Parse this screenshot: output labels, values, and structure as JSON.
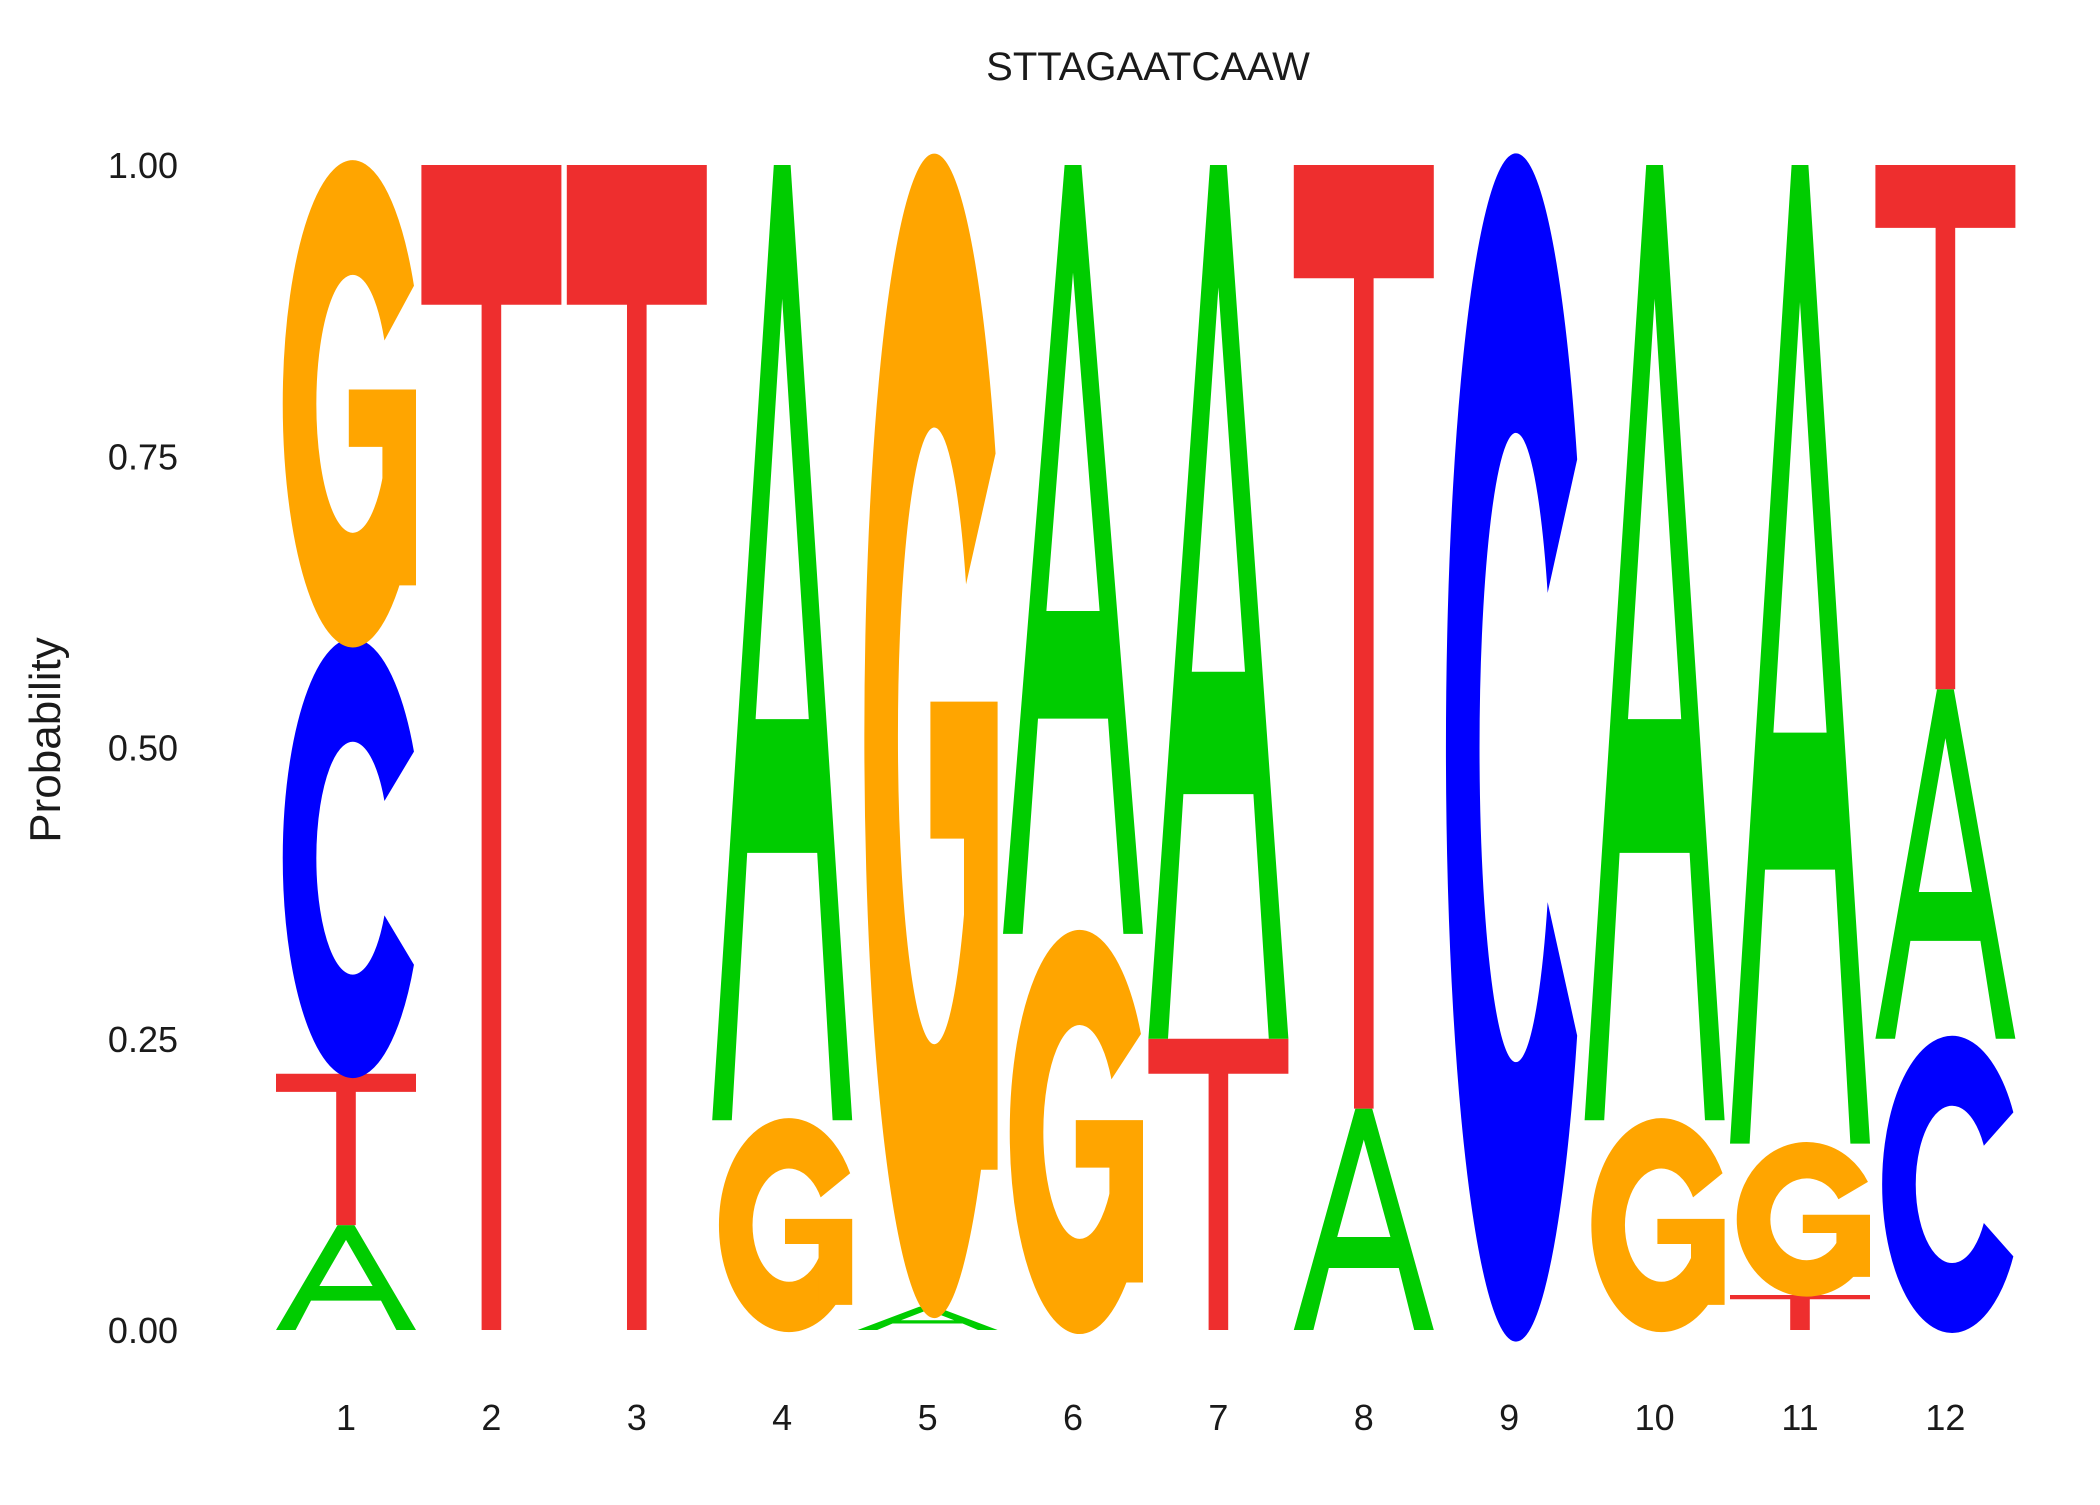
{
  "chart_data": {
    "type": "sequence-logo",
    "title": "STTAGAATCAAW",
    "ylabel": "Probability",
    "xlabel": "",
    "ylim": [
      0,
      1
    ],
    "yticks": [
      "0.00",
      "0.25",
      "0.50",
      "0.75",
      "1.00"
    ],
    "positions": [
      "1",
      "2",
      "3",
      "4",
      "5",
      "6",
      "7",
      "8",
      "9",
      "10",
      "11",
      "12"
    ],
    "colors": {
      "A": "#00cc00",
      "C": "#0000ff",
      "G": "#ffa500",
      "T": "#ee2e2e"
    },
    "columns": [
      [
        {
          "base": "A",
          "p": 0.09
        },
        {
          "base": "T",
          "p": 0.13
        },
        {
          "base": "C",
          "p": 0.37
        },
        {
          "base": "G",
          "p": 0.41
        }
      ],
      [
        {
          "base": "T",
          "p": 1.0
        }
      ],
      [
        {
          "base": "T",
          "p": 1.0
        }
      ],
      [
        {
          "base": "G",
          "p": 0.18
        },
        {
          "base": "A",
          "p": 0.82
        }
      ],
      [
        {
          "base": "A",
          "p": 0.02
        },
        {
          "base": "G",
          "p": 0.98
        }
      ],
      [
        {
          "base": "G",
          "p": 0.34
        },
        {
          "base": "A",
          "p": 0.66
        }
      ],
      [
        {
          "base": "T",
          "p": 0.25
        },
        {
          "base": "A",
          "p": 0.75
        }
      ],
      [
        {
          "base": "A",
          "p": 0.19
        },
        {
          "base": "T",
          "p": 0.81
        }
      ],
      [
        {
          "base": "C",
          "p": 1.0
        }
      ],
      [
        {
          "base": "G",
          "p": 0.18
        },
        {
          "base": "A",
          "p": 0.82
        }
      ],
      [
        {
          "base": "T",
          "p": 0.03
        },
        {
          "base": "G",
          "p": 0.13
        },
        {
          "base": "A",
          "p": 0.84
        }
      ],
      [
        {
          "base": "C",
          "p": 0.25
        },
        {
          "base": "A",
          "p": 0.3
        },
        {
          "base": "T",
          "p": 0.45
        }
      ]
    ]
  }
}
